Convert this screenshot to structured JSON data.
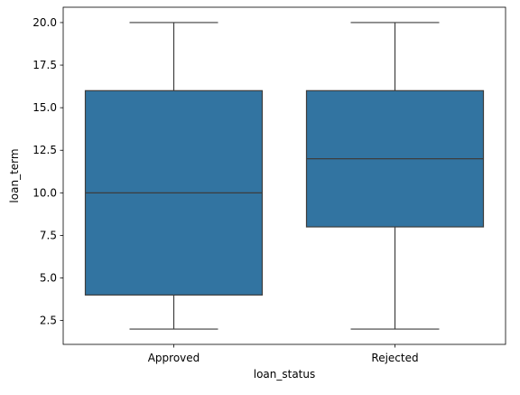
{
  "chart_data": {
    "type": "box",
    "title": "",
    "xlabel": "loan_status",
    "ylabel": "loan_term",
    "categories": [
      "Approved",
      "Rejected"
    ],
    "boxes": [
      {
        "category": "Approved",
        "whislo": 2,
        "q1": 4,
        "med": 10,
        "q3": 16,
        "whishi": 20
      },
      {
        "category": "Rejected",
        "whislo": 2,
        "q1": 8,
        "med": 12,
        "q3": 16,
        "whishi": 20
      }
    ],
    "ylim": [
      1.1,
      20.9
    ],
    "yticks": [
      2.5,
      5.0,
      7.5,
      10.0,
      12.5,
      15.0,
      17.5,
      20.0
    ],
    "ytick_labels": [
      "2.5",
      "5.0",
      "7.5",
      "10.0",
      "12.5",
      "15.0",
      "17.5",
      "20.0"
    ],
    "grid": false,
    "colors": {
      "box_fill": "#3274a1",
      "line": "#3d3d3d",
      "axis": "#000000"
    }
  }
}
